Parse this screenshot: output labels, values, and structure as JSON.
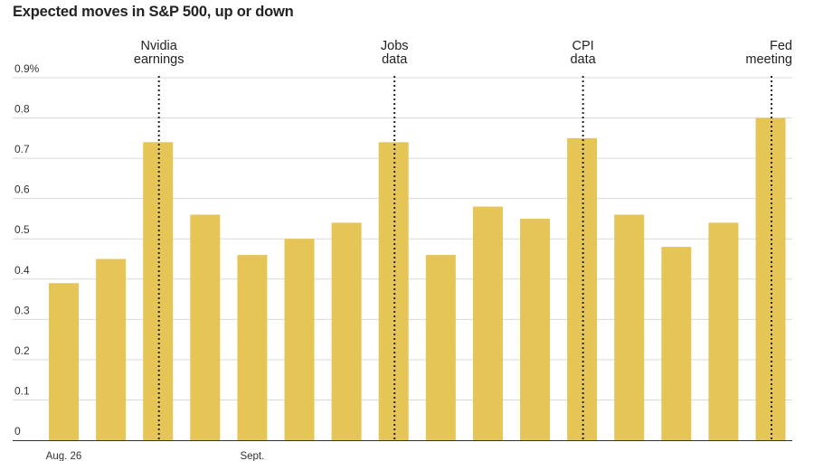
{
  "chart_data": {
    "type": "bar",
    "title": "Expected moves in S&P 500, up or down",
    "values": [
      0.39,
      0.45,
      0.74,
      0.56,
      0.46,
      0.5,
      0.54,
      0.74,
      0.46,
      0.58,
      0.55,
      0.75,
      0.56,
      0.48,
      0.54,
      0.8
    ],
    "ylim": [
      0,
      0.9
    ],
    "y_ticks": [
      {
        "value": 0,
        "label": "0"
      },
      {
        "value": 0.1,
        "label": "0.1"
      },
      {
        "value": 0.2,
        "label": "0.2"
      },
      {
        "value": 0.3,
        "label": "0.3"
      },
      {
        "value": 0.4,
        "label": "0.4"
      },
      {
        "value": 0.5,
        "label": "0.5"
      },
      {
        "value": 0.6,
        "label": "0.6"
      },
      {
        "value": 0.7,
        "label": "0.7"
      },
      {
        "value": 0.8,
        "label": "0.8"
      },
      {
        "value": 0.9,
        "label": "0.9%"
      }
    ],
    "x_tick_labels": [
      {
        "bar_index": 0,
        "label": "Aug. 26"
      },
      {
        "bar_index": 4,
        "label": "Sept."
      }
    ],
    "event_markers": [
      {
        "bar_index": 2,
        "lines": [
          "Nvidia",
          "earnings"
        ],
        "align": "center"
      },
      {
        "bar_index": 7,
        "lines": [
          "Jobs",
          "data"
        ],
        "align": "center"
      },
      {
        "bar_index": 11,
        "lines": [
          "CPI",
          "data"
        ],
        "align": "center"
      },
      {
        "bar_index": 15,
        "lines": [
          "Fed",
          "meeting"
        ],
        "align": "end"
      }
    ],
    "grid": true,
    "colors": {
      "bar": "#e5c556",
      "grid": "#d9d9d9",
      "axis": "#333333",
      "marker": "#222222"
    }
  }
}
